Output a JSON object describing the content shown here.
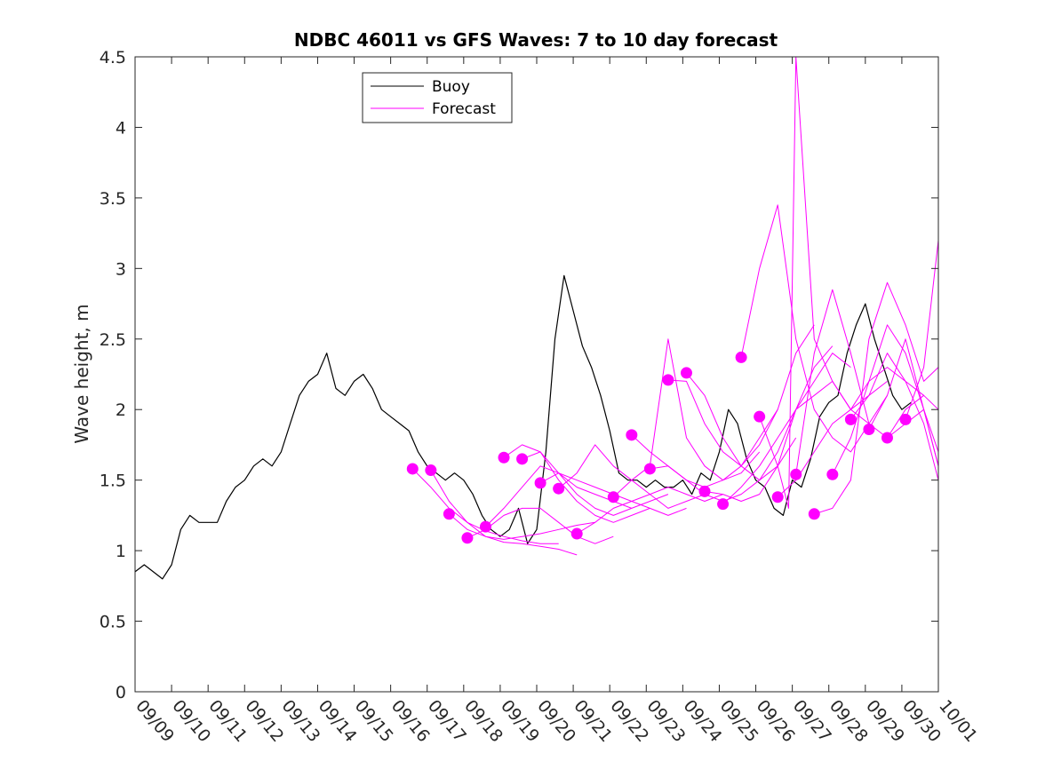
{
  "chart_data": {
    "type": "line",
    "title": "NDBC 46011 vs GFS Waves: 7 to 10 day forecast",
    "xlabel": "",
    "ylabel": "Wave height, m",
    "xlim": [
      0,
      22
    ],
    "ylim": [
      0,
      4.5
    ],
    "x_tick_labels": [
      "09/09",
      "09/10",
      "09/11",
      "09/12",
      "09/13",
      "09/14",
      "09/15",
      "09/16",
      "09/17",
      "09/18",
      "09/19",
      "09/20",
      "09/21",
      "09/22",
      "09/23",
      "09/24",
      "09/25",
      "09/26",
      "09/27",
      "09/28",
      "09/29",
      "09/30",
      "10/01"
    ],
    "y_ticks": [
      0,
      0.5,
      1,
      1.5,
      2,
      2.5,
      3,
      3.5,
      4,
      4.5
    ],
    "y_tick_labels": [
      "0",
      "0.5",
      "1",
      "1.5",
      "2",
      "2.5",
      "3",
      "3.5",
      "4",
      "4.5"
    ],
    "legend": {
      "position": "top-left",
      "entries": [
        {
          "label": "Buoy",
          "color": "#000000"
        },
        {
          "label": "Forecast",
          "color": "#ff00ff"
        }
      ]
    },
    "colors": {
      "buoy": "#000000",
      "forecast": "#ff00ff"
    },
    "series": [
      {
        "name": "Buoy",
        "x": [
          0.0,
          0.25,
          0.5,
          0.75,
          1.0,
          1.25,
          1.5,
          1.75,
          2.0,
          2.25,
          2.5,
          2.75,
          3.0,
          3.25,
          3.5,
          3.75,
          4.0,
          4.25,
          4.5,
          4.75,
          5.0,
          5.25,
          5.5,
          5.75,
          6.0,
          6.25,
          6.5,
          6.75,
          7.0,
          7.25,
          7.5,
          7.75,
          8.0,
          8.25,
          8.5,
          8.75,
          9.0,
          9.25,
          9.5,
          9.75,
          10.0,
          10.25,
          10.5,
          10.75,
          11.0,
          11.25,
          11.5,
          11.75,
          12.0,
          12.25,
          12.5,
          12.75,
          13.0,
          13.25,
          13.5,
          13.75,
          14.0,
          14.25,
          14.5,
          14.75,
          15.0,
          15.25,
          15.5,
          15.75,
          16.0,
          16.25,
          16.5,
          16.75,
          17.0,
          17.25,
          17.5,
          17.75,
          18.0,
          18.25,
          18.5,
          18.75,
          19.0,
          19.25,
          19.5,
          19.75,
          20.0,
          20.25,
          20.5,
          20.75,
          21.0,
          21.25
        ],
        "values": [
          0.85,
          0.9,
          0.85,
          0.8,
          0.9,
          1.15,
          1.25,
          1.2,
          1.2,
          1.2,
          1.35,
          1.45,
          1.5,
          1.6,
          1.65,
          1.6,
          1.7,
          1.9,
          2.1,
          2.2,
          2.25,
          2.4,
          2.15,
          2.1,
          2.2,
          2.25,
          2.15,
          2.0,
          1.95,
          1.9,
          1.85,
          1.7,
          1.6,
          1.55,
          1.5,
          1.55,
          1.5,
          1.4,
          1.25,
          1.15,
          1.1,
          1.15,
          1.3,
          1.05,
          1.15,
          1.7,
          2.5,
          2.95,
          2.7,
          2.45,
          2.3,
          2.1,
          1.85,
          1.55,
          1.5,
          1.5,
          1.45,
          1.5,
          1.45,
          1.45,
          1.5,
          1.4,
          1.55,
          1.5,
          1.7,
          2.0,
          1.9,
          1.65,
          1.5,
          1.45,
          1.3,
          1.25,
          1.5,
          1.45,
          1.65,
          1.95,
          2.05,
          2.1,
          2.4,
          2.6,
          2.75,
          2.5,
          2.3,
          2.1,
          2.0,
          2.05
        ]
      },
      {
        "name": "Forecast 1",
        "x": [
          7.6,
          8.1,
          8.6,
          9.1,
          9.6,
          10.1,
          10.6,
          11.1,
          11.6
        ],
        "values": [
          1.58,
          1.45,
          1.3,
          1.2,
          1.14,
          1.1,
          1.07,
          1.05,
          1.05
        ]
      },
      {
        "name": "Forecast 2",
        "x": [
          8.1,
          8.6,
          9.1,
          9.6,
          10.1,
          10.6,
          11.1,
          11.6,
          12.1
        ],
        "values": [
          1.57,
          1.35,
          1.2,
          1.1,
          1.06,
          1.05,
          1.03,
          1.01,
          0.97
        ]
      },
      {
        "name": "Forecast 3",
        "x": [
          8.6,
          9.1,
          9.6,
          10.1,
          10.6,
          11.1,
          11.6,
          12.1,
          12.6
        ],
        "values": [
          1.26,
          1.15,
          1.1,
          1.08,
          1.1,
          1.12,
          1.15,
          1.18,
          1.2
        ]
      },
      {
        "name": "Forecast 4",
        "x": [
          9.1,
          9.6,
          10.1,
          10.6,
          11.1,
          11.6,
          12.1,
          12.6,
          13.1
        ],
        "values": [
          1.09,
          1.15,
          1.25,
          1.3,
          1.3,
          1.2,
          1.1,
          1.05,
          1.1
        ]
      },
      {
        "name": "Forecast 5",
        "x": [
          9.6,
          10.1,
          10.6,
          11.1,
          11.6,
          12.1,
          12.6,
          13.1,
          13.6
        ],
        "values": [
          1.17,
          1.3,
          1.45,
          1.6,
          1.55,
          1.4,
          1.3,
          1.25,
          1.3
        ]
      },
      {
        "name": "Forecast 6",
        "x": [
          10.1,
          10.6,
          11.1,
          11.6,
          12.1,
          12.6,
          13.1,
          13.6,
          14.1
        ],
        "values": [
          1.66,
          1.75,
          1.7,
          1.5,
          1.35,
          1.25,
          1.2,
          1.25,
          1.3
        ]
      },
      {
        "name": "Forecast 7",
        "x": [
          10.6,
          11.1,
          11.6,
          12.1,
          12.6,
          13.1,
          13.6,
          14.1,
          14.6
        ],
        "values": [
          1.65,
          1.7,
          1.55,
          1.45,
          1.4,
          1.35,
          1.3,
          1.35,
          1.4
        ]
      },
      {
        "name": "Forecast 8",
        "x": [
          11.1,
          11.6,
          12.1,
          12.6,
          13.1,
          13.6,
          14.1,
          14.6,
          15.1
        ],
        "values": [
          1.48,
          1.55,
          1.5,
          1.45,
          1.4,
          1.35,
          1.3,
          1.25,
          1.3
        ]
      },
      {
        "name": "Forecast 9",
        "x": [
          11.6,
          12.1,
          12.6,
          13.1,
          13.6,
          14.1,
          14.6,
          15.1,
          15.6
        ],
        "values": [
          1.44,
          1.55,
          1.75,
          1.6,
          1.5,
          1.4,
          1.3,
          1.35,
          1.4
        ]
      },
      {
        "name": "Forecast 10",
        "x": [
          12.1,
          12.6,
          13.1,
          13.6,
          14.1,
          14.6,
          15.1,
          15.6,
          16.1
        ],
        "values": [
          1.12,
          1.2,
          1.3,
          1.35,
          1.4,
          1.45,
          1.4,
          1.35,
          1.4
        ]
      },
      {
        "name": "Forecast 11",
        "x": [
          13.1,
          13.6,
          14.1,
          14.6,
          15.1,
          15.6,
          16.1,
          16.6,
          17.1
        ],
        "values": [
          1.38,
          1.5,
          1.6,
          2.5,
          1.8,
          1.6,
          1.5,
          1.55,
          1.7
        ]
      },
      {
        "name": "Forecast 12",
        "x": [
          13.6,
          14.1,
          14.6,
          15.1,
          15.6,
          16.1,
          16.6,
          17.1,
          17.6
        ],
        "values": [
          1.82,
          1.7,
          1.6,
          1.5,
          1.45,
          1.5,
          1.6,
          1.8,
          2.0
        ]
      },
      {
        "name": "Forecast 13",
        "x": [
          14.1,
          14.6,
          15.1,
          15.6,
          16.1,
          16.6,
          17.1,
          17.6,
          18.1
        ],
        "values": [
          1.58,
          1.6,
          1.5,
          1.4,
          1.35,
          1.4,
          1.5,
          1.6,
          1.8
        ]
      },
      {
        "name": "Forecast 14",
        "x": [
          14.6,
          15.1,
          15.6,
          16.1,
          16.6,
          17.1,
          17.6,
          18.1,
          18.6
        ],
        "values": [
          2.21,
          2.2,
          1.9,
          1.7,
          1.6,
          1.75,
          2.0,
          2.4,
          2.6
        ]
      },
      {
        "name": "Forecast 15",
        "x": [
          15.1,
          15.6,
          16.1,
          16.6,
          17.1,
          17.6,
          18.1,
          18.6,
          19.1
        ],
        "values": [
          2.26,
          2.1,
          1.8,
          1.6,
          1.5,
          1.7,
          2.0,
          2.3,
          2.45
        ]
      },
      {
        "name": "Forecast 16",
        "x": [
          15.6,
          16.1,
          16.6,
          17.1,
          17.6,
          18.1,
          18.6,
          19.1,
          19.6
        ],
        "values": [
          1.42,
          1.4,
          1.35,
          1.4,
          1.6,
          2.0,
          2.2,
          2.4,
          2.3
        ]
      },
      {
        "name": "Forecast 17",
        "x": [
          16.1,
          16.6,
          17.1,
          17.6,
          18.1,
          18.6,
          19.1,
          19.6,
          20.1
        ],
        "values": [
          1.33,
          1.45,
          1.6,
          1.8,
          2.0,
          2.1,
          2.2,
          2.0,
          1.9
        ]
      },
      {
        "name": "Forecast 18",
        "x": [
          16.6,
          17.1,
          17.6,
          18.1,
          18.6,
          19.1,
          19.6,
          20.1,
          20.6
        ],
        "values": [
          2.37,
          3.0,
          3.45,
          2.5,
          2.0,
          1.8,
          1.7,
          1.9,
          2.1
        ]
      },
      {
        "name": "Forecast 19",
        "x": [
          17.1,
          17.6,
          17.9,
          18.1,
          18.6,
          19.1,
          19.6,
          20.1,
          20.6
        ],
        "values": [
          1.95,
          1.6,
          1.3,
          4.5,
          2.5,
          2.2,
          2.0,
          2.1,
          2.2
        ]
      },
      {
        "name": "Forecast 20",
        "x": [
          17.6,
          18.1,
          18.6,
          19.1,
          19.6,
          20.1,
          20.6,
          21.1,
          21.6
        ],
        "values": [
          1.38,
          1.5,
          1.7,
          1.9,
          2.0,
          2.2,
          2.3,
          2.2,
          2.1
        ]
      },
      {
        "name": "Forecast 21",
        "x": [
          18.1,
          18.6,
          19.1,
          19.6,
          20.1,
          20.6,
          21.1,
          21.6,
          22.0
        ],
        "values": [
          1.54,
          2.4,
          2.85,
          2.4,
          1.9,
          1.8,
          2.0,
          2.1,
          2.0
        ]
      },
      {
        "name": "Forecast 22",
        "x": [
          18.6,
          19.1,
          19.6,
          20.1,
          20.6,
          21.1,
          21.6,
          22.0
        ],
        "values": [
          1.26,
          1.3,
          1.5,
          2.5,
          2.9,
          2.6,
          2.2,
          2.3
        ]
      },
      {
        "name": "Forecast 23",
        "x": [
          19.1,
          19.6,
          20.1,
          20.6,
          21.1,
          21.6,
          22.0
        ],
        "values": [
          1.54,
          1.8,
          2.2,
          2.6,
          2.4,
          2.0,
          1.7
        ]
      },
      {
        "name": "Forecast 24",
        "x": [
          19.6,
          20.1,
          20.6,
          21.1,
          21.6,
          22.0
        ],
        "values": [
          1.93,
          2.1,
          2.4,
          2.2,
          1.9,
          1.5
        ]
      },
      {
        "name": "Forecast 25",
        "x": [
          20.1,
          20.6,
          21.1,
          21.6,
          22.0
        ],
        "values": [
          1.86,
          2.1,
          2.5,
          2.0,
          1.6
        ]
      },
      {
        "name": "Forecast 26",
        "x": [
          20.6,
          21.1,
          21.6,
          22.0
        ],
        "values": [
          1.8,
          1.9,
          2.0,
          1.6
        ]
      },
      {
        "name": "Forecast 27",
        "x": [
          21.1,
          21.6,
          22.0
        ],
        "values": [
          1.93,
          2.3,
          3.2
        ]
      }
    ],
    "forecast_start_points": {
      "x": [
        7.6,
        8.1,
        8.6,
        9.1,
        9.6,
        10.1,
        10.6,
        11.1,
        11.6,
        12.1,
        13.1,
        13.6,
        14.1,
        14.6,
        15.1,
        15.6,
        16.1,
        16.6,
        17.1,
        17.6,
        18.1,
        18.6,
        19.1,
        19.6,
        20.1,
        20.6,
        21.1
      ],
      "values": [
        1.58,
        1.57,
        1.26,
        1.09,
        1.17,
        1.66,
        1.65,
        1.48,
        1.44,
        1.12,
        1.38,
        1.82,
        1.58,
        2.21,
        2.26,
        1.42,
        1.33,
        2.37,
        1.95,
        1.38,
        1.54,
        1.26,
        1.54,
        1.93,
        1.86,
        1.8,
        1.93
      ]
    }
  }
}
